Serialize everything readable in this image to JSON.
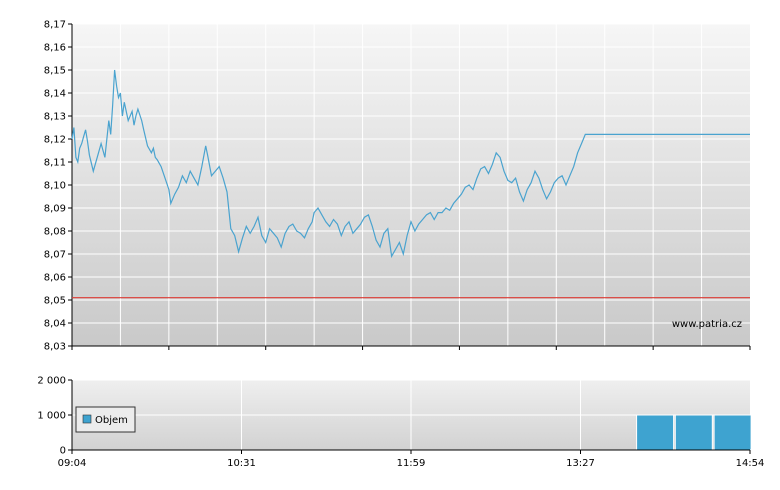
{
  "watermark": "www.patria.cz",
  "colors": {
    "price_line": "#4aa3cf",
    "reference_line": "#dd3b35",
    "volume_bar": "#3ea3d0",
    "axis": "#000000"
  },
  "chart_data": [
    {
      "type": "line",
      "title": "",
      "xlabel": "",
      "ylabel": "",
      "ylim": [
        8.03,
        8.17
      ],
      "grid": true,
      "y_ticks": [
        "8,17",
        "8,16",
        "8,15",
        "8,14",
        "8,13",
        "8,12",
        "8,11",
        "8,10",
        "8,09",
        "8,08",
        "8,07",
        "8,06",
        "8,05",
        "8,04",
        "8,03"
      ],
      "x_range": [
        "09:04",
        "14:54"
      ],
      "reference_line": 8.051,
      "series": [
        {
          "x": [
            "09:04",
            "09:05",
            "09:06",
            "09:07",
            "09:08",
            "09:09",
            "09:10",
            "09:11",
            "09:12",
            "09:13",
            "09:15",
            "09:17",
            "09:19",
            "09:21",
            "09:23",
            "09:24",
            "09:25",
            "09:26",
            "09:27",
            "09:28",
            "09:29",
            "09:30",
            "09:31",
            "09:33",
            "09:35",
            "09:36",
            "09:37",
            "09:38",
            "09:40",
            "09:41",
            "09:43",
            "09:45",
            "09:46",
            "09:47",
            "09:48",
            "09:50",
            "09:52",
            "09:54",
            "09:55",
            "09:57",
            "09:59",
            "10:01",
            "10:03",
            "10:05",
            "10:07",
            "10:09",
            "10:11",
            "10:13",
            "10:14",
            "10:16",
            "10:18",
            "10:20",
            "10:22",
            "10:24",
            "10:26",
            "10:28",
            "10:30",
            "10:32",
            "10:34",
            "10:36",
            "10:38",
            "10:40",
            "10:42",
            "10:44",
            "10:46",
            "10:48",
            "10:50",
            "10:52",
            "10:54",
            "10:56",
            "10:58",
            "11:00",
            "11:02",
            "11:04",
            "11:06",
            "11:08",
            "11:09",
            "11:11",
            "11:13",
            "11:15",
            "11:17",
            "11:19",
            "11:21",
            "11:23",
            "11:25",
            "11:27",
            "11:29",
            "11:31",
            "11:33",
            "11:35",
            "11:37",
            "11:39",
            "11:41",
            "11:43",
            "11:45",
            "11:47",
            "11:49",
            "11:51",
            "11:53",
            "11:55",
            "11:57",
            "11:59",
            "12:01",
            "12:03",
            "12:05",
            "12:07",
            "12:09",
            "12:11",
            "12:13",
            "12:15",
            "12:17",
            "12:19",
            "12:21",
            "12:23",
            "12:25",
            "12:27",
            "12:29",
            "12:31",
            "12:33",
            "12:35",
            "12:37",
            "12:39",
            "12:41",
            "12:43",
            "12:45",
            "12:47",
            "12:49",
            "12:51",
            "12:53",
            "12:55",
            "12:57",
            "12:59",
            "13:01",
            "13:03",
            "13:05",
            "13:07",
            "13:09",
            "13:11",
            "13:13",
            "13:15",
            "13:17",
            "13:19",
            "13:21",
            "13:23",
            "13:25",
            "13:27",
            "13:29",
            "13:31",
            "13:33",
            "13:35",
            "13:37",
            "13:39",
            "13:41",
            "13:43",
            "13:45",
            "13:47",
            "13:49",
            "13:51",
            "13:53",
            "13:55",
            "13:57",
            "13:58",
            "14:00",
            "14:10",
            "14:20",
            "14:30",
            "14:40",
            "14:54"
          ],
          "y": [
            8.12,
            8.125,
            8.112,
            8.11,
            8.116,
            8.118,
            8.121,
            8.124,
            8.119,
            8.113,
            8.106,
            8.112,
            8.118,
            8.112,
            8.128,
            8.122,
            8.135,
            8.15,
            8.143,
            8.138,
            8.14,
            8.13,
            8.136,
            8.128,
            8.132,
            8.126,
            8.13,
            8.133,
            8.128,
            8.124,
            8.117,
            8.114,
            8.116,
            8.112,
            8.111,
            8.108,
            8.103,
            8.098,
            8.092,
            8.096,
            8.099,
            8.104,
            8.101,
            8.106,
            8.103,
            8.1,
            8.108,
            8.117,
            8.113,
            8.104,
            8.106,
            8.108,
            8.103,
            8.097,
            8.081,
            8.078,
            8.071,
            8.077,
            8.082,
            8.079,
            8.082,
            8.086,
            8.078,
            8.075,
            8.081,
            8.079,
            8.077,
            8.073,
            8.079,
            8.082,
            8.083,
            8.08,
            8.079,
            8.077,
            8.081,
            8.084,
            8.088,
            8.09,
            8.087,
            8.084,
            8.082,
            8.085,
            8.083,
            8.078,
            8.082,
            8.084,
            8.079,
            8.081,
            8.083,
            8.086,
            8.087,
            8.082,
            8.076,
            8.073,
            8.079,
            8.081,
            8.069,
            8.072,
            8.075,
            8.07,
            8.078,
            8.084,
            8.08,
            8.083,
            8.085,
            8.087,
            8.088,
            8.085,
            8.088,
            8.088,
            8.09,
            8.089,
            8.092,
            8.094,
            8.096,
            8.099,
            8.1,
            8.098,
            8.103,
            8.107,
            8.108,
            8.105,
            8.109,
            8.114,
            8.112,
            8.106,
            8.102,
            8.101,
            8.103,
            8.097,
            8.093,
            8.098,
            8.101,
            8.106,
            8.103,
            8.098,
            8.094,
            8.097,
            8.101,
            8.103,
            8.104,
            8.1,
            8.104,
            8.108,
            8.114,
            8.118,
            8.122,
            8.122,
            8.122,
            8.122,
            8.122,
            8.122,
            8.122,
            8.122,
            8.122,
            8.122,
            8.122,
            8.122,
            8.122,
            8.122,
            8.122,
            8.122,
            8.122,
            8.122,
            8.122,
            8.122,
            8.122,
            8.122
          ]
        }
      ]
    },
    {
      "type": "bar",
      "title": "",
      "xlabel": "",
      "ylabel": "",
      "ylim": [
        0,
        2000
      ],
      "grid": true,
      "y_ticks": [
        "2 000",
        "1 000",
        "0"
      ],
      "x_ticks": [
        "09:04",
        "10:31",
        "11:59",
        "13:27",
        "14:54"
      ],
      "legend": {
        "label": "Objem",
        "placement": "left"
      },
      "series": [
        {
          "name": "Objem",
          "x": [
            "14:05",
            "14:25",
            "14:45"
          ],
          "values": [
            1000,
            1000,
            1000
          ]
        }
      ]
    }
  ]
}
